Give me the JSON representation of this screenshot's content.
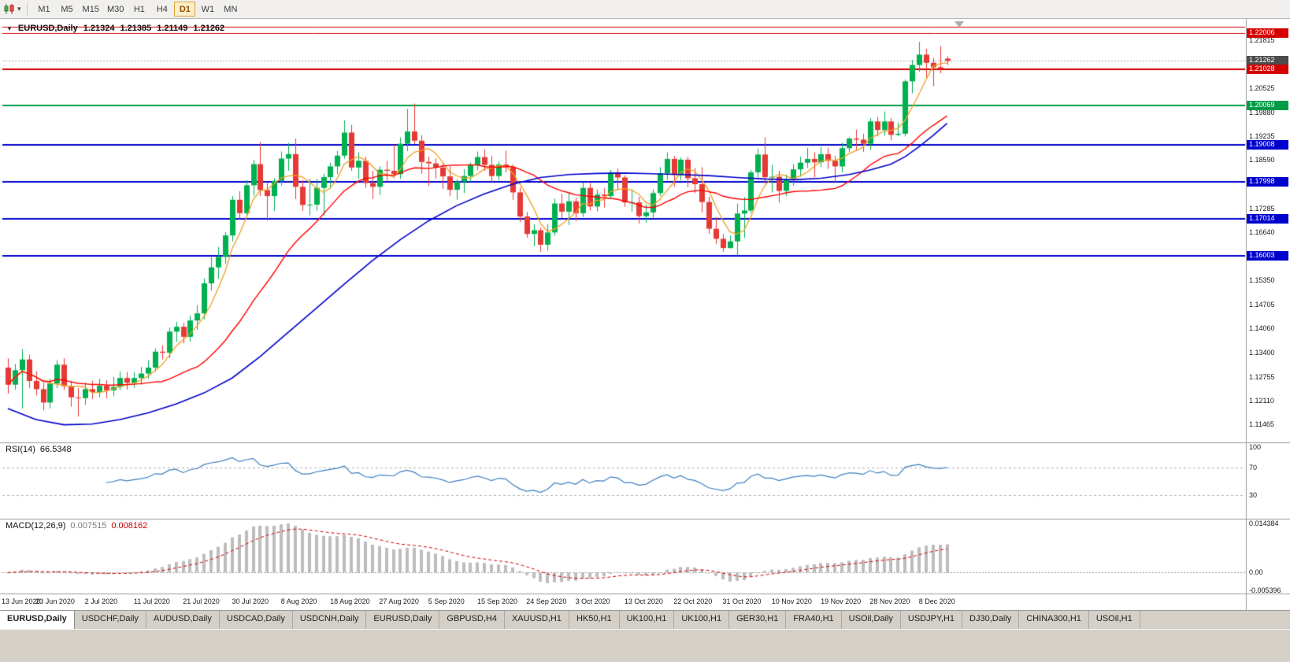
{
  "toolbar": {
    "timeframes": [
      "M1",
      "M5",
      "M15",
      "M30",
      "H1",
      "H4",
      "D1",
      "W1",
      "MN"
    ],
    "active_timeframe": "D1"
  },
  "icons": {
    "collapse": "▼",
    "caret": "▾"
  },
  "chart_header": {
    "symbol": "EURUSD,Daily",
    "open": "1.21324",
    "high": "1.21385",
    "low": "1.21149",
    "close": "1.21262"
  },
  "rsi_panel": {
    "name": "RSI(14)",
    "value": "66.5348",
    "line_color": "#3e7fc1",
    "level_lines": [
      70,
      30
    ],
    "axis_labels": [
      {
        "text": "100",
        "value": 100
      },
      {
        "text": "70",
        "value": 70
      },
      {
        "text": "30",
        "value": 30
      }
    ]
  },
  "macd_panel": {
    "name": "MACD(12,26,9)",
    "value_main": "0.007515",
    "value_signal": "0.008162",
    "histogram_color": "#bdbdbd",
    "signal_color": "#d40000",
    "axis_labels": [
      {
        "text": "0.014384",
        "value": 0.014384
      },
      {
        "text": "0.00",
        "value": 0
      },
      {
        "text": "-0.005396",
        "value": -0.005396
      }
    ]
  },
  "price_axis": {
    "ticks": [
      "1.21815",
      "1.20525",
      "1.19880",
      "1.19235",
      "1.18590",
      "1.17285",
      "1.16640",
      "1.15350",
      "1.14705",
      "1.14060",
      "1.13400",
      "1.12755",
      "1.12110",
      "1.11465"
    ],
    "tags": [
      {
        "text": "1.22006",
        "bg": "#d40000"
      },
      {
        "text": "1.21262",
        "bg": "#4d4d4d"
      },
      {
        "text": "1.21028",
        "bg": "#d40000"
      },
      {
        "text": "1.20069",
        "bg": "#009b48"
      },
      {
        "text": "1.19008",
        "bg": "#0000cd"
      },
      {
        "text": "1.17998",
        "bg": "#0000cd"
      },
      {
        "text": "1.17014",
        "bg": "#0000cd"
      },
      {
        "text": "1.16003",
        "bg": "#0000cd"
      }
    ]
  },
  "tabs": {
    "active_index": 0,
    "items": [
      "EURUSD,Daily",
      "USDCHF,Daily",
      "AUDUSD,Daily",
      "USDCAD,Daily",
      "USDCNH,Daily",
      "EURUSD,Daily",
      "GBPUSD,H4",
      "XAUUSD,H1",
      "HK50,H1",
      "UK100,H1",
      "UK100,H1",
      "GER30,H1",
      "FRA40,H1",
      "USOil,Daily",
      "USDJPY,H1",
      "DJ30,Daily",
      "CHINA300,H1",
      "USOil,H1"
    ]
  },
  "chart_data": {
    "type": "candlestick",
    "symbol": "EURUSD",
    "timeframe": "Daily",
    "x_labels": [
      "13 Jun 2020",
      "23 Jun 2020",
      "2 Jul 2020",
      "11 Jul 2020",
      "21 Jul 2020",
      "30 Jul 2020",
      "8 Aug 2020",
      "18 Aug 2020",
      "27 Aug 2020",
      "5 Sep 2020",
      "15 Sep 2020",
      "24 Sep 2020",
      "3 Oct 2020",
      "13 Oct 2020",
      "22 Oct 2020",
      "31 Oct 2020",
      "10 Nov 2020",
      "19 Nov 2020",
      "28 Nov 2020",
      "8 Dec 2020"
    ],
    "bars_per_label": 7,
    "price_range": [
      1.1105,
      1.2235
    ],
    "up_color": "#00b050",
    "down_color": "#e53935",
    "candles": [
      [
        1.13,
        1.1325,
        1.123,
        1.1254
      ],
      [
        1.1254,
        1.131,
        1.124,
        1.1293
      ],
      [
        1.1293,
        1.135,
        1.119,
        1.1322
      ],
      [
        1.1322,
        1.1335,
        1.1245,
        1.1264
      ],
      [
        1.1264,
        1.129,
        1.1225,
        1.1242
      ],
      [
        1.1242,
        1.126,
        1.1185,
        1.1206
      ],
      [
        1.1206,
        1.127,
        1.119,
        1.1257
      ],
      [
        1.1257,
        1.132,
        1.1245,
        1.1308
      ],
      [
        1.1308,
        1.1325,
        1.124,
        1.125
      ],
      [
        1.125,
        1.1265,
        1.1195,
        1.122
      ],
      [
        1.122,
        1.1245,
        1.1168,
        1.1218
      ],
      [
        1.1218,
        1.126,
        1.12,
        1.1242
      ],
      [
        1.1242,
        1.1265,
        1.1215,
        1.1234
      ],
      [
        1.1234,
        1.127,
        1.122,
        1.1251
      ],
      [
        1.1251,
        1.1266,
        1.1218,
        1.1239
      ],
      [
        1.1239,
        1.1275,
        1.1223,
        1.1248
      ],
      [
        1.1248,
        1.129,
        1.124,
        1.1272
      ],
      [
        1.1272,
        1.1288,
        1.1241,
        1.1259
      ],
      [
        1.1259,
        1.1288,
        1.1246,
        1.1272
      ],
      [
        1.1272,
        1.1302,
        1.1254,
        1.1284
      ],
      [
        1.1284,
        1.132,
        1.127,
        1.13
      ],
      [
        1.13,
        1.1352,
        1.129,
        1.1343
      ],
      [
        1.1343,
        1.136,
        1.1322,
        1.134
      ],
      [
        1.134,
        1.1408,
        1.1325,
        1.1397
      ],
      [
        1.1397,
        1.1423,
        1.137,
        1.141
      ],
      [
        1.141,
        1.142,
        1.1365,
        1.1383
      ],
      [
        1.1383,
        1.144,
        1.137,
        1.1427
      ],
      [
        1.1427,
        1.1468,
        1.1402,
        1.1446
      ],
      [
        1.1446,
        1.154,
        1.143,
        1.1527
      ],
      [
        1.1527,
        1.1601,
        1.1507,
        1.157
      ],
      [
        1.157,
        1.1625,
        1.1539,
        1.1598
      ],
      [
        1.1598,
        1.1665,
        1.158,
        1.1656
      ],
      [
        1.1656,
        1.1762,
        1.164,
        1.1752
      ],
      [
        1.1752,
        1.1775,
        1.17,
        1.1716
      ],
      [
        1.1716,
        1.1805,
        1.171,
        1.1791
      ],
      [
        1.1791,
        1.186,
        1.1762,
        1.1848
      ],
      [
        1.1848,
        1.1908,
        1.1762,
        1.1778
      ],
      [
        1.1778,
        1.1797,
        1.1696,
        1.1762
      ],
      [
        1.1762,
        1.181,
        1.1722,
        1.1803
      ],
      [
        1.1803,
        1.1882,
        1.179,
        1.1863
      ],
      [
        1.1863,
        1.1905,
        1.183,
        1.1875
      ],
      [
        1.1875,
        1.1917,
        1.1754,
        1.1787
      ],
      [
        1.1787,
        1.1805,
        1.1722,
        1.1738
      ],
      [
        1.1738,
        1.1808,
        1.171,
        1.1739
      ],
      [
        1.1739,
        1.1809,
        1.1723,
        1.1784
      ],
      [
        1.1784,
        1.1822,
        1.171,
        1.1813
      ],
      [
        1.1813,
        1.1852,
        1.1782,
        1.1842
      ],
      [
        1.1842,
        1.1884,
        1.1821,
        1.1871
      ],
      [
        1.1871,
        1.1966,
        1.1863,
        1.1933
      ],
      [
        1.1933,
        1.1954,
        1.183,
        1.1839
      ],
      [
        1.1839,
        1.188,
        1.1808,
        1.1857
      ],
      [
        1.1857,
        1.1868,
        1.1784,
        1.1797
      ],
      [
        1.1797,
        1.183,
        1.1754,
        1.1787
      ],
      [
        1.1787,
        1.1843,
        1.1765,
        1.1833
      ],
      [
        1.1833,
        1.1857,
        1.18,
        1.183
      ],
      [
        1.183,
        1.19,
        1.181,
        1.1821
      ],
      [
        1.1821,
        1.192,
        1.1808,
        1.1903
      ],
      [
        1.1903,
        1.1997,
        1.1883,
        1.1936
      ],
      [
        1.1936,
        1.2011,
        1.1902,
        1.1911
      ],
      [
        1.1911,
        1.1926,
        1.1822,
        1.1854
      ],
      [
        1.1854,
        1.1868,
        1.1789,
        1.185
      ],
      [
        1.185,
        1.1864,
        1.1809,
        1.1839
      ],
      [
        1.1839,
        1.185,
        1.1781,
        1.1815
      ],
      [
        1.1815,
        1.1842,
        1.1762,
        1.1779
      ],
      [
        1.1779,
        1.1808,
        1.1752,
        1.1801
      ],
      [
        1.1801,
        1.1834,
        1.177,
        1.1816
      ],
      [
        1.1816,
        1.1852,
        1.18,
        1.1845
      ],
      [
        1.1845,
        1.1882,
        1.1832,
        1.1867
      ],
      [
        1.1867,
        1.1888,
        1.183,
        1.1846
      ],
      [
        1.1846,
        1.187,
        1.18,
        1.1816
      ],
      [
        1.1816,
        1.1855,
        1.1805,
        1.1847
      ],
      [
        1.1847,
        1.1884,
        1.1826,
        1.184
      ],
      [
        1.184,
        1.1848,
        1.1752,
        1.1772
      ],
      [
        1.1772,
        1.1785,
        1.1692,
        1.1707
      ],
      [
        1.1707,
        1.1719,
        1.165,
        1.166
      ],
      [
        1.166,
        1.1686,
        1.1627,
        1.167
      ],
      [
        1.167,
        1.1677,
        1.1612,
        1.1631
      ],
      [
        1.1631,
        1.1686,
        1.1615,
        1.1664
      ],
      [
        1.1664,
        1.1755,
        1.1655,
        1.1742
      ],
      [
        1.1742,
        1.1768,
        1.1702,
        1.172
      ],
      [
        1.172,
        1.177,
        1.1684,
        1.1748
      ],
      [
        1.1748,
        1.1758,
        1.1695,
        1.1716
      ],
      [
        1.1716,
        1.1798,
        1.1706,
        1.1784
      ],
      [
        1.1784,
        1.1797,
        1.1723,
        1.1734
      ],
      [
        1.1734,
        1.178,
        1.1721,
        1.1766
      ],
      [
        1.1766,
        1.1783,
        1.1731,
        1.1762
      ],
      [
        1.1762,
        1.1832,
        1.1756,
        1.1826
      ],
      [
        1.1826,
        1.1836,
        1.1777,
        1.1812
      ],
      [
        1.1812,
        1.1818,
        1.1733,
        1.1745
      ],
      [
        1.1745,
        1.178,
        1.172,
        1.1745
      ],
      [
        1.1745,
        1.176,
        1.1688,
        1.1708
      ],
      [
        1.1708,
        1.174,
        1.169,
        1.1718
      ],
      [
        1.1718,
        1.178,
        1.1704,
        1.177
      ],
      [
        1.177,
        1.184,
        1.1762,
        1.1823
      ],
      [
        1.1823,
        1.188,
        1.1806,
        1.1862
      ],
      [
        1.1862,
        1.187,
        1.1787,
        1.1819
      ],
      [
        1.1819,
        1.1866,
        1.1805,
        1.186
      ],
      [
        1.186,
        1.1868,
        1.1786,
        1.181
      ],
      [
        1.181,
        1.1838,
        1.177,
        1.1794
      ],
      [
        1.1794,
        1.184,
        1.1718,
        1.1746
      ],
      [
        1.1746,
        1.176,
        1.166,
        1.1674
      ],
      [
        1.1674,
        1.1705,
        1.1633,
        1.1647
      ],
      [
        1.1647,
        1.166,
        1.1612,
        1.1622
      ],
      [
        1.1622,
        1.1656,
        1.1621,
        1.164
      ],
      [
        1.164,
        1.1742,
        1.1602,
        1.1715
      ],
      [
        1.1715,
        1.176,
        1.165,
        1.1723
      ],
      [
        1.1723,
        1.1832,
        1.1716,
        1.1826
      ],
      [
        1.1826,
        1.189,
        1.1812,
        1.1874
      ],
      [
        1.1874,
        1.192,
        1.1795,
        1.1813
      ],
      [
        1.1813,
        1.1846,
        1.1772,
        1.1814
      ],
      [
        1.1814,
        1.183,
        1.1745,
        1.1776
      ],
      [
        1.1776,
        1.182,
        1.1762,
        1.1805
      ],
      [
        1.1805,
        1.1848,
        1.179,
        1.1834
      ],
      [
        1.1834,
        1.1868,
        1.1814,
        1.1852
      ],
      [
        1.1852,
        1.1892,
        1.1838,
        1.1862
      ],
      [
        1.1862,
        1.188,
        1.1813,
        1.1853
      ],
      [
        1.1853,
        1.1894,
        1.184,
        1.1875
      ],
      [
        1.1875,
        1.1892,
        1.1835,
        1.1857
      ],
      [
        1.1857,
        1.187,
        1.18,
        1.1842
      ],
      [
        1.1842,
        1.1906,
        1.1826,
        1.1891
      ],
      [
        1.1891,
        1.192,
        1.1881,
        1.1917
      ],
      [
        1.1917,
        1.1941,
        1.1884,
        1.1914
      ],
      [
        1.1914,
        1.193,
        1.1881,
        1.1903
      ],
      [
        1.1903,
        1.1972,
        1.1886,
        1.1963
      ],
      [
        1.1963,
        1.1975,
        1.1923,
        1.194
      ],
      [
        1.194,
        1.199,
        1.1925,
        1.1963
      ],
      [
        1.1963,
        1.1972,
        1.1912,
        1.1927
      ],
      [
        1.1927,
        1.196,
        1.1923,
        1.193
      ],
      [
        1.193,
        1.2076,
        1.1923,
        1.2071
      ],
      [
        1.2071,
        1.2128,
        1.2039,
        1.2115
      ],
      [
        1.2115,
        1.2177,
        1.2097,
        1.2143
      ],
      [
        1.2143,
        1.2159,
        1.208,
        1.2121
      ],
      [
        1.2121,
        1.2134,
        1.2058,
        1.2109
      ],
      [
        1.2109,
        1.2166,
        1.2093,
        1.2105
      ],
      [
        1.21324,
        1.21385,
        1.21149,
        1.21262
      ]
    ],
    "levels": [
      {
        "price": 1.2219,
        "color": "#d40000",
        "width": 1
      },
      {
        "price": 1.22006,
        "color": "#d40000",
        "width": 1
      },
      {
        "price": 1.21028,
        "color": "#d40000",
        "width": 2
      },
      {
        "price": 1.20069,
        "color": "#009b48",
        "width": 2
      },
      {
        "price": 1.19008,
        "color": "#0000cd",
        "width": 2
      },
      {
        "price": 1.17998,
        "color": "#0000cd",
        "width": 2
      },
      {
        "price": 1.17014,
        "color": "#0000cd",
        "width": 2
      },
      {
        "price": 1.16003,
        "color": "#0000cd",
        "width": 2
      }
    ],
    "current_price": 1.21262,
    "current_price_line_color": "#aaaaaa",
    "ma_orange": {
      "type": "sma",
      "period": 5,
      "color": "#efa021"
    },
    "ma_red": {
      "type": "sma",
      "period": 20,
      "color": "#ff0000"
    },
    "ma_blue": {
      "color": "#0000cc",
      "points": [
        [
          0,
          1.119
        ],
        [
          4,
          1.116
        ],
        [
          8,
          1.1146
        ],
        [
          12,
          1.1148
        ],
        [
          16,
          1.116
        ],
        [
          20,
          1.1178
        ],
        [
          24,
          1.1202
        ],
        [
          28,
          1.1232
        ],
        [
          32,
          1.1272
        ],
        [
          36,
          1.133
        ],
        [
          40,
          1.1395
        ],
        [
          44,
          1.146
        ],
        [
          48,
          1.1525
        ],
        [
          52,
          1.1588
        ],
        [
          56,
          1.1645
        ],
        [
          60,
          1.1695
        ],
        [
          64,
          1.1736
        ],
        [
          68,
          1.1768
        ],
        [
          72,
          1.1794
        ],
        [
          76,
          1.1812
        ],
        [
          80,
          1.182
        ],
        [
          84,
          1.1823
        ],
        [
          88,
          1.1824
        ],
        [
          92,
          1.1822
        ],
        [
          96,
          1.182
        ],
        [
          100,
          1.1817
        ],
        [
          104,
          1.1812
        ],
        [
          108,
          1.1808
        ],
        [
          112,
          1.1806
        ],
        [
          116,
          1.181
        ],
        [
          120,
          1.182
        ],
        [
          123,
          1.1832
        ],
        [
          126,
          1.1848
        ],
        [
          128,
          1.1868
        ],
        [
          130,
          1.1895
        ],
        [
          132,
          1.1925
        ],
        [
          134,
          1.1958
        ]
      ]
    },
    "rsi_period": 14,
    "macd_params": [
      12,
      26,
      9
    ],
    "macd_range": [
      -0.005396,
      0.014384
    ],
    "rsi_range": [
      0,
      100
    ]
  }
}
